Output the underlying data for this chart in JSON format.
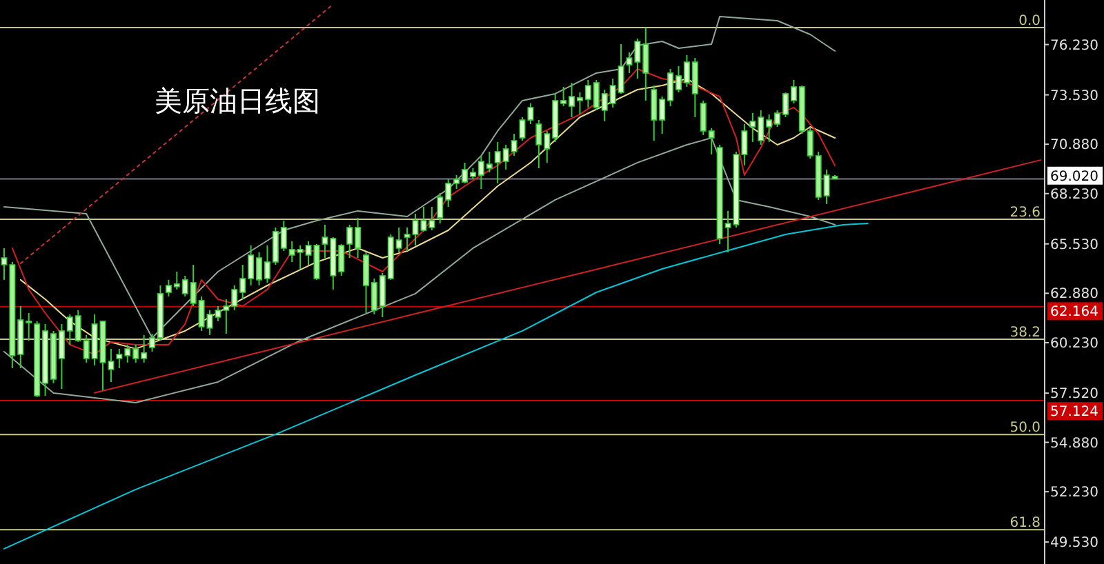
{
  "chart_data": {
    "type": "candlestick",
    "title": "美原油日线图",
    "color": "#33cc33",
    "categories": [
      null,
      null,
      null,
      null,
      null,
      null,
      null,
      null,
      null,
      null,
      null,
      null,
      null,
      null,
      null,
      null,
      null,
      null,
      null,
      null,
      null,
      null,
      null,
      null,
      null,
      null,
      null,
      null,
      null,
      null,
      null,
      null,
      null,
      null,
      null,
      null,
      null,
      null,
      null,
      null,
      null,
      null,
      null,
      null,
      null,
      null,
      null,
      null,
      null,
      null,
      null,
      null,
      null,
      null,
      null,
      null,
      null,
      null,
      null,
      null,
      null,
      null,
      null,
      null,
      null,
      null,
      null,
      null,
      null,
      null,
      null,
      null,
      null,
      null,
      null,
      null,
      null,
      null,
      null,
      null,
      null,
      null,
      null,
      null,
      null,
      null,
      null,
      null,
      null,
      null,
      null,
      null,
      null,
      null,
      null,
      null,
      null,
      null,
      null,
      null,
      null,
      null,
      null,
      null,
      null,
      null,
      null,
      null,
      null,
      null,
      null,
      null,
      null,
      null,
      null,
      null,
      null,
      null,
      null,
      null,
      null,
      null,
      null,
      null,
      null,
      null,
      null
    ],
    "ohlc": [
      [
        64.41,
        65.3,
        63.6,
        64.78
      ],
      [
        64.41,
        64.56,
        58.86,
        59.53
      ],
      [
        59.6,
        62.19,
        58.86,
        61.45
      ],
      [
        61.38,
        61.82,
        60.34,
        61.3
      ],
      [
        61.23,
        61.38,
        57.31,
        57.38
      ],
      [
        58.05,
        61.23,
        57.38,
        60.86
      ],
      [
        60.71,
        60.86,
        58.05,
        58.27
      ],
      [
        59.38,
        61.23,
        57.75,
        60.86
      ],
      [
        60.86,
        61.75,
        60.12,
        61.6
      ],
      [
        61.67,
        61.97,
        60.27,
        60.34
      ],
      [
        60.34,
        60.64,
        59.16,
        59.38
      ],
      [
        59.38,
        61.75,
        59.01,
        61.23
      ],
      [
        61.38,
        61.38,
        57.68,
        59.16
      ],
      [
        58.79,
        59.9,
        58.12,
        59.23
      ],
      [
        59.38,
        59.9,
        58.86,
        59.6
      ],
      [
        59.53,
        60.12,
        59.16,
        59.9
      ],
      [
        59.9,
        60.12,
        59.16,
        59.38
      ],
      [
        59.38,
        60.64,
        59.16,
        59.68
      ],
      [
        59.97,
        60.71,
        59.75,
        60.49
      ],
      [
        60.49,
        63.3,
        60.34,
        62.86
      ],
      [
        62.93,
        63.6,
        62.71,
        63.3
      ],
      [
        63.23,
        64.04,
        63.08,
        63.38
      ],
      [
        62.86,
        63.82,
        62.71,
        63.6
      ],
      [
        63.45,
        64.41,
        62.19,
        62.34
      ],
      [
        62.49,
        62.71,
        60.86,
        61.08
      ],
      [
        61.01,
        61.97,
        60.64,
        61.75
      ],
      [
        61.6,
        62.19,
        61.38,
        61.97
      ],
      [
        61.97,
        62.56,
        60.71,
        62.19
      ],
      [
        62.19,
        63.3,
        61.97,
        63.08
      ],
      [
        62.93,
        64.41,
        62.56,
        63.67
      ],
      [
        63.67,
        65.45,
        63.3,
        64.93
      ],
      [
        64.78,
        65.08,
        63.3,
        63.6
      ],
      [
        63.67,
        65.45,
        63.45,
        64.56
      ],
      [
        64.56,
        66.41,
        64.41,
        66.19
      ],
      [
        65.3,
        66.78,
        65.15,
        66.41
      ],
      [
        65.23,
        65.67,
        64.56,
        64.93
      ],
      [
        65.08,
        65.45,
        64.19,
        65.23
      ],
      [
        64.93,
        65.67,
        64.41,
        65.45
      ],
      [
        65.45,
        65.52,
        63.6,
        63.67
      ],
      [
        65.52,
        66.56,
        64.78,
        65.89
      ],
      [
        63.82,
        65.89,
        63.08,
        65.82
      ],
      [
        65.45,
        65.52,
        63.82,
        64.04
      ],
      [
        65.52,
        66.56,
        64.78,
        66.41
      ],
      [
        66.41,
        66.93,
        64.78,
        65.3
      ],
      [
        64.93,
        65.08,
        61.82,
        63.3
      ],
      [
        63.45,
        63.67,
        61.75,
        61.97
      ],
      [
        62.19,
        63.97,
        61.6,
        63.82
      ],
      [
        63.67,
        66.04,
        63.6,
        65.89
      ],
      [
        65.3,
        66.41,
        65.08,
        65.74
      ],
      [
        65.89,
        66.41,
        65.15,
        66.04
      ],
      [
        66.04,
        67.15,
        65.45,
        66.78
      ],
      [
        66.26,
        67.52,
        66.19,
        66.78
      ],
      [
        66.41,
        67.52,
        66.26,
        66.78
      ],
      [
        66.93,
        68.26,
        66.63,
        68.04
      ],
      [
        67.89,
        69.0,
        67.52,
        68.78
      ],
      [
        68.78,
        69.22,
        68.48,
        69.0
      ],
      [
        68.85,
        69.89,
        68.78,
        69.52
      ],
      [
        69.15,
        69.59,
        69.0,
        69.37
      ],
      [
        69.22,
        70.26,
        68.48,
        69.96
      ],
      [
        69.59,
        70.48,
        69.37,
        69.81
      ],
      [
        69.89,
        71.0,
        68.78,
        70.48
      ],
      [
        69.96,
        70.85,
        69.52,
        70.63
      ],
      [
        70.48,
        71.44,
        70.26,
        71.07
      ],
      [
        71.22,
        72.33,
        71.07,
        72.18
      ],
      [
        72.18,
        73.07,
        71.96,
        72.85
      ],
      [
        71.96,
        72.18,
        69.59,
        70.85
      ],
      [
        70.63,
        71.59,
        69.89,
        71.44
      ],
      [
        71.22,
        73.59,
        71.0,
        73.22
      ],
      [
        73.07,
        73.96,
        72.92,
        73.22
      ],
      [
        72.92,
        74.18,
        72.33,
        73.44
      ],
      [
        73.22,
        73.66,
        72.48,
        73.37
      ],
      [
        73.29,
        74.33,
        72.85,
        74.03
      ],
      [
        74.18,
        74.33,
        72.7,
        72.85
      ],
      [
        72.7,
        73.81,
        72.11,
        73.59
      ],
      [
        73.07,
        74.4,
        72.85,
        74.03
      ],
      [
        73.66,
        76.25,
        73.59,
        75.07
      ],
      [
        75.14,
        75.81,
        74.7,
        75.51
      ],
      [
        75.29,
        76.55,
        74.4,
        76.4
      ],
      [
        76.25,
        77.14,
        73.22,
        74.7
      ],
      [
        73.81,
        74.03,
        71.07,
        72.18
      ],
      [
        72.18,
        73.44,
        71.44,
        73.29
      ],
      [
        73.22,
        74.92,
        72.92,
        74.7
      ],
      [
        73.81,
        75.07,
        73.66,
        74.55
      ],
      [
        74.18,
        75.66,
        73.96,
        75.29
      ],
      [
        75.29,
        75.51,
        72.33,
        73.59
      ],
      [
        73.07,
        73.22,
        71.37,
        71.59
      ],
      [
        71.59,
        71.74,
        70.33,
        71.22
      ],
      [
        70.7,
        70.85,
        65.52,
        65.82
      ],
      [
        66.41,
        67.3,
        65.08,
        66.63
      ],
      [
        66.56,
        70.48,
        66.41,
        70.33
      ],
      [
        70.33,
        71.96,
        69.74,
        71.59
      ],
      [
        71.81,
        72.55,
        71.0,
        72.11
      ],
      [
        71.07,
        72.7,
        70.85,
        72.33
      ],
      [
        71.81,
        72.48,
        71.0,
        72.18
      ],
      [
        71.96,
        72.7,
        71.81,
        72.55
      ],
      [
        72.48,
        73.66,
        72.33,
        73.59
      ],
      [
        73.22,
        74.33,
        73.07,
        73.96
      ],
      [
        73.96,
        74.03,
        71.44,
        71.59
      ],
      [
        71.59,
        71.74,
        70.11,
        70.26
      ],
      [
        70.26,
        70.48,
        67.89,
        68.04
      ],
      [
        68.11,
        69.52,
        67.67,
        69.22
      ],
      [
        69.15,
        69.22,
        69.0,
        69.02
      ],
      null,
      null,
      null,
      null,
      null,
      null,
      null,
      null,
      null,
      null,
      null,
      null,
      null,
      null,
      null,
      null,
      null,
      null,
      null,
      null,
      null,
      null,
      null,
      null,
      null
    ],
    "series": [
      {
        "type": "line",
        "color": "#00c8d8",
        "values": [
          49.17,
          null,
          null,
          null,
          null,
          null,
          null,
          null,
          null,
          null,
          null,
          null,
          null,
          null,
          null,
          null,
          52.35,
          null,
          null,
          null,
          null,
          null,
          null,
          null,
          null,
          null,
          null,
          null,
          null,
          null,
          null,
          null,
          null,
          55.31,
          null,
          null,
          null,
          null,
          null,
          null,
          null,
          null,
          null,
          null,
          null,
          null,
          null,
          null,
          null,
          null,
          58.49,
          null,
          null,
          null,
          null,
          null,
          null,
          null,
          null,
          null,
          null,
          null,
          null,
          60.86,
          null,
          null,
          null,
          null,
          null,
          null,
          null,
          null,
          62.93,
          null,
          null,
          null,
          null,
          null,
          null,
          null,
          64.19,
          null,
          null,
          null,
          null,
          null,
          null,
          null,
          null,
          65.3,
          null,
          null,
          null,
          null,
          null,
          66.04,
          null,
          null,
          null,
          null,
          null,
          null,
          66.56,
          null,
          null,
          66.63,
          null,
          null,
          null,
          null,
          null,
          null,
          null,
          null,
          null,
          null,
          null,
          null,
          null,
          null,
          null,
          null,
          null,
          null,
          null,
          null,
          null
        ]
      },
      {
        "type": "line",
        "color": "#8fa89a",
        "values": [
          67.52,
          null,
          null,
          null,
          null,
          null,
          null,
          null,
          null,
          null,
          67.15,
          null,
          null,
          null,
          null,
          null,
          null,
          null,
          60.49,
          null,
          null,
          null,
          null,
          null,
          null,
          null,
          64.04,
          null,
          null,
          null,
          null,
          null,
          null,
          null,
          66.26,
          null,
          null,
          null,
          66.78,
          null,
          null,
          null,
          null,
          67.3,
          null,
          null,
          null,
          null,
          null,
          67.0,
          null,
          null,
          null,
          null,
          68.48,
          null,
          null,
          null,
          70.26,
          null,
          71.59,
          null,
          null,
          73.22,
          null,
          null,
          null,
          73.59,
          null,
          null,
          null,
          null,
          74.7,
          null,
          null,
          74.92,
          null,
          76.18,
          null,
          null,
          76.4,
          null,
          76.03,
          null,
          null,
          null,
          76.25,
          77.73,
          null,
          null,
          null,
          null,
          null,
          null,
          77.51,
          null,
          null,
          null,
          76.77,
          null,
          null,
          75.88,
          null,
          null,
          null,
          null,
          null,
          null,
          null,
          null,
          null,
          null,
          null,
          null,
          null,
          null,
          null,
          null,
          null,
          null,
          null,
          null,
          null,
          null,
          null,
          null,
          null
        ]
      },
      {
        "type": "line",
        "color": "#8fa89a",
        "values": [
          59.75,
          null,
          null,
          null,
          null,
          null,
          57.53,
          null,
          null,
          null,
          null,
          null,
          null,
          null,
          null,
          null,
          57.01,
          null,
          null,
          null,
          null,
          null,
          null,
          null,
          null,
          null,
          58.12,
          null,
          null,
          null,
          null,
          null,
          null,
          null,
          null,
          null,
          60.34,
          null,
          null,
          null,
          null,
          null,
          null,
          61.6,
          null,
          null,
          null,
          null,
          null,
          null,
          62.86,
          null,
          null,
          null,
          null,
          null,
          null,
          65.3,
          null,
          null,
          null,
          null,
          null,
          null,
          null,
          null,
          null,
          67.89,
          null,
          null,
          null,
          null,
          null,
          null,
          null,
          null,
          null,
          69.89,
          null,
          null,
          null,
          null,
          null,
          70.85,
          null,
          null,
          71.22,
          null,
          null,
          67.89,
          null,
          null,
          null,
          67.52,
          null,
          null,
          null,
          null,
          67.0,
          null,
          null,
          66.56,
          null,
          null,
          null,
          null,
          null,
          null,
          null,
          null,
          null,
          null,
          null,
          null,
          null,
          null,
          null,
          null,
          null,
          null,
          null,
          null,
          null,
          null,
          null,
          null,
          null
        ]
      },
      {
        "type": "line",
        "color": "#e8d890",
        "values": [
          null,
          null,
          63.6,
          null,
          null,
          62.56,
          null,
          null,
          61.38,
          null,
          null,
          60.49,
          null,
          null,
          null,
          null,
          59.9,
          null,
          null,
          null,
          null,
          null,
          60.86,
          null,
          null,
          null,
          null,
          null,
          62.34,
          null,
          null,
          null,
          63.3,
          null,
          null,
          null,
          null,
          null,
          64.56,
          null,
          null,
          null,
          null,
          65.3,
          null,
          null,
          64.78,
          null,
          null,
          65.15,
          null,
          null,
          null,
          null,
          66.26,
          null,
          null,
          null,
          null,
          null,
          68.63,
          null,
          null,
          null,
          69.89,
          null,
          null,
          null,
          null,
          null,
          72.33,
          null,
          null,
          null,
          null,
          null,
          null,
          73.81,
          null,
          null,
          74.03,
          null,
          null,
          74.4,
          null,
          null,
          73.59,
          null,
          null,
          72.48,
          null,
          71.74,
          null,
          null,
          70.85,
          null,
          71.22,
          null,
          71.81,
          null,
          null,
          71.22,
          null,
          null,
          null,
          null,
          null,
          null,
          null,
          null,
          null,
          null,
          null,
          null,
          null,
          null,
          null,
          null,
          null,
          null,
          null,
          null,
          null,
          null,
          null,
          null,
          null
        ]
      },
      {
        "type": "line",
        "color": "#d02020",
        "values": [
          null,
          65.3,
          null,
          63.08,
          null,
          61.82,
          null,
          null,
          60.12,
          null,
          null,
          59.6,
          null,
          60.27,
          null,
          null,
          60.12,
          null,
          null,
          null,
          60.12,
          null,
          61.23,
          null,
          63.6,
          null,
          62.56,
          null,
          null,
          62.19,
          null,
          null,
          63.08,
          null,
          null,
          65.15,
          null,
          null,
          null,
          null,
          null,
          65.15,
          null,
          null,
          null,
          null,
          64.04,
          null,
          64.93,
          null,
          null,
          66.26,
          null,
          null,
          68.04,
          null,
          null,
          null,
          69.22,
          null,
          69.74,
          null,
          null,
          null,
          71.22,
          null,
          null,
          null,
          null,
          null,
          72.48,
          null,
          null,
          null,
          null,
          73.96,
          null,
          74.92,
          null,
          null,
          74.4,
          null,
          null,
          74.18,
          null,
          null,
          null,
          73.44,
          null,
          71.22,
          69.22,
          null,
          70.7,
          null,
          72.48,
          null,
          72.85,
          72.48,
          null,
          71.44,
          null,
          69.74,
          null,
          null,
          null,
          null,
          null,
          null,
          null,
          null,
          null,
          null,
          null,
          null,
          null,
          null,
          null,
          null,
          null,
          null,
          null,
          null,
          null,
          null,
          null,
          null,
          null
        ]
      },
      {
        "type": "line",
        "color": "#cc2222",
        "values": [
          null,
          null,
          null,
          null,
          null,
          null,
          null,
          null,
          null,
          null,
          null,
          57.54,
          null,
          null,
          null,
          null,
          null,
          null,
          null,
          null,
          null,
          null,
          null,
          null,
          null,
          null,
          null,
          null,
          null,
          null,
          59.6,
          null,
          null,
          null,
          null,
          null,
          null,
          null,
          null,
          null,
          null,
          null,
          null,
          null,
          null,
          null,
          null,
          null,
          null,
          null,
          61.78,
          null,
          null,
          null,
          null,
          null,
          null,
          null,
          null,
          null,
          null,
          null,
          null,
          null,
          null,
          null,
          null,
          null,
          null,
          null,
          63.95,
          null,
          null,
          null,
          null,
          null,
          null,
          null,
          null,
          null,
          null,
          null,
          null,
          null,
          null,
          null,
          null,
          null,
          null,
          null,
          66.12,
          null,
          null,
          null,
          null,
          null,
          null,
          null,
          null,
          null,
          null,
          null,
          null,
          null,
          null,
          null,
          null,
          null,
          null,
          null,
          68.29,
          null,
          null,
          null,
          null,
          null,
          null,
          null,
          null,
          null,
          null,
          null,
          null,
          null,
          null,
          null,
          70.03
        ]
      },
      {
        "type": "line",
        "color": "#cc3333",
        "line_style": "dotted",
        "values": [
          null,
          null,
          64.48,
          null,
          null,
          null,
          null,
          null,
          null,
          null,
          null,
          null,
          null,
          null,
          null,
          null,
          null,
          null,
          null,
          null,
          null,
          71.43,
          null,
          null,
          null,
          null,
          null,
          null,
          null,
          null,
          null,
          null,
          null,
          null,
          null,
          null,
          null,
          null,
          null,
          null,
          78.39,
          null,
          null,
          null,
          null,
          null,
          null,
          null,
          null,
          null,
          null,
          null,
          null,
          null,
          null,
          null,
          null,
          null,
          null,
          null,
          null,
          null,
          null,
          null,
          null,
          null,
          null,
          null,
          null,
          null,
          null,
          null,
          null,
          null,
          null,
          null,
          null,
          null,
          null,
          null,
          null,
          null,
          null,
          null,
          null,
          null,
          null,
          null,
          null,
          null,
          null,
          null,
          null,
          null,
          null,
          null,
          null,
          null,
          null,
          null,
          null,
          null,
          null,
          null,
          null,
          null,
          null,
          null,
          null,
          null,
          null,
          null,
          null,
          null,
          null,
          null,
          null,
          null,
          null,
          null,
          null,
          null,
          null,
          null,
          null,
          null,
          null
        ]
      }
    ],
    "ylim": [
      48.35,
      78.62
    ],
    "yticks": [
      {
        "value": 76.23,
        "label": "76.230"
      },
      {
        "value": 73.53,
        "label": "73.530"
      },
      {
        "value": 70.88,
        "label": "70.880"
      },
      {
        "value": 68.23,
        "label": "68.230"
      },
      {
        "value": 65.53,
        "label": "65.530"
      },
      {
        "value": 62.88,
        "label": "62.880"
      },
      {
        "value": 60.23,
        "label": "60.230"
      },
      {
        "value": 57.52,
        "label": "57.520"
      },
      {
        "value": 54.88,
        "label": "54.880"
      },
      {
        "value": 52.23,
        "label": "52.230"
      },
      {
        "value": 49.53,
        "label": "49.530"
      }
    ],
    "ref_lines": [
      {
        "axis": "y",
        "value": 77.14,
        "color": "#c8c88c"
      },
      {
        "axis": "y",
        "value": 66.85,
        "color": "#c8c88c"
      },
      {
        "axis": "y",
        "value": 60.41,
        "color": "#c8c88c"
      },
      {
        "axis": "y",
        "value": 55.3,
        "color": "#c8c88c"
      },
      {
        "axis": "y",
        "value": 50.19,
        "color": "#c8c88c"
      },
      {
        "axis": "y",
        "value": 62.164,
        "label": "62.164",
        "color": "#cc0000"
      },
      {
        "axis": "y",
        "value": 57.124,
        "label": "57.124",
        "color": "#cc0000"
      },
      {
        "axis": "y",
        "value": 69.02,
        "label": "69.020",
        "color": "#7a7a8c"
      }
    ],
    "annotations": [
      {
        "text": "0.0",
        "y": 77.14
      },
      {
        "text": "23.6",
        "y": 66.85
      },
      {
        "text": "38.2",
        "y": 60.41
      },
      {
        "text": "50.0",
        "y": 55.3
      },
      {
        "text": "61.8",
        "y": 50.19
      }
    ],
    "tick_labels": "y",
    "grid": false
  }
}
